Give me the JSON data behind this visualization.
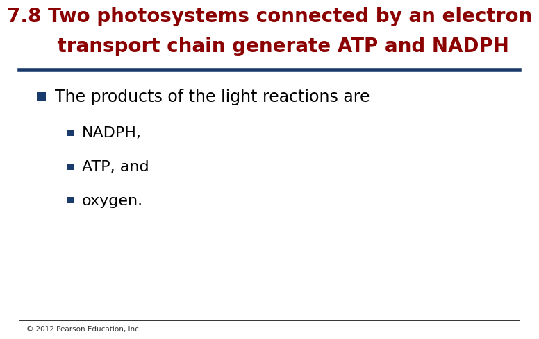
{
  "title_line1": "7.8 Two photosystems connected by an electron",
  "title_line2": "    transport chain generate ATP and NADPH",
  "title_color": "#8B0000",
  "title_fontsize": 20,
  "divider_color": "#1A3A6B",
  "divider_linewidth": 4,
  "background_color": "#FFFFFF",
  "bullet1_text": "■ The products of the light reactions are",
  "bullet1_marker_color": "#1A3A6B",
  "bullet1_color": "#000000",
  "bullet1_fontsize": 17,
  "sub_bullets": [
    "NADPH,",
    "ATP, and",
    "oxygen."
  ],
  "sub_bullet_color": "#000000",
  "sub_bullet_fontsize": 16,
  "sub_bullet_marker_color": "#1A3A6B",
  "footer_text": "© 2012 Pearson Education, Inc.",
  "footer_color": "#333333",
  "footer_fontsize": 7.5,
  "footer_line_color": "#111111",
  "footer_line_linewidth": 1.2
}
